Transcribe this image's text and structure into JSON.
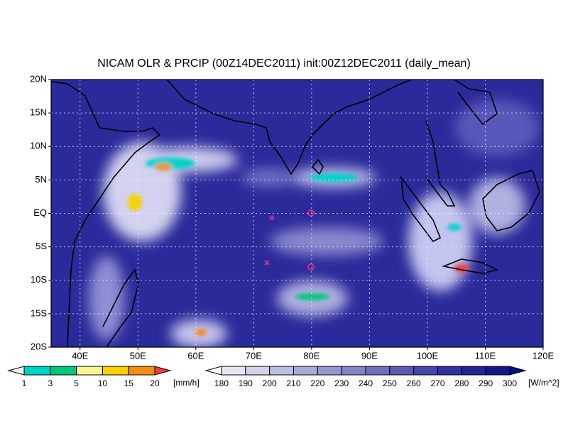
{
  "title": "NICAM OLR & PRCIP (00Z14DEC2011) init:00Z12DEC2011 (daily_mean)",
  "lat_labels": [
    "20N",
    "15N",
    "10N",
    "5N",
    "EQ",
    "5S",
    "10S",
    "15S",
    "20S"
  ],
  "lon_labels": [
    "40E",
    "50E",
    "60E",
    "70E",
    "80E",
    "90E",
    "100E",
    "110E",
    "120E"
  ],
  "precip_colorbar": {
    "labels": [
      "1",
      "3",
      "5",
      "10",
      "15",
      "20"
    ],
    "unit": "[mm/h]",
    "colors": [
      "#f0f0f0",
      "#00d2c8",
      "#00c87a",
      "#f5f596",
      "#f5d200",
      "#f58c14",
      "#f03c3c"
    ]
  },
  "olr_colorbar": {
    "labels": [
      "180",
      "190",
      "200",
      "210",
      "220",
      "230",
      "240",
      "250",
      "260",
      "270",
      "280",
      "290",
      "300"
    ],
    "unit": "[W/m^2]",
    "colors": [
      "#ffffff",
      "#e6e6f2",
      "#d2d2ea",
      "#bebee2",
      "#aaaad8",
      "#9696ce",
      "#8282c4",
      "#6e6eba",
      "#5a5ab0",
      "#4646a6",
      "#32329c",
      "#232392",
      "#16168a",
      "#0c0c80"
    ]
  }
}
